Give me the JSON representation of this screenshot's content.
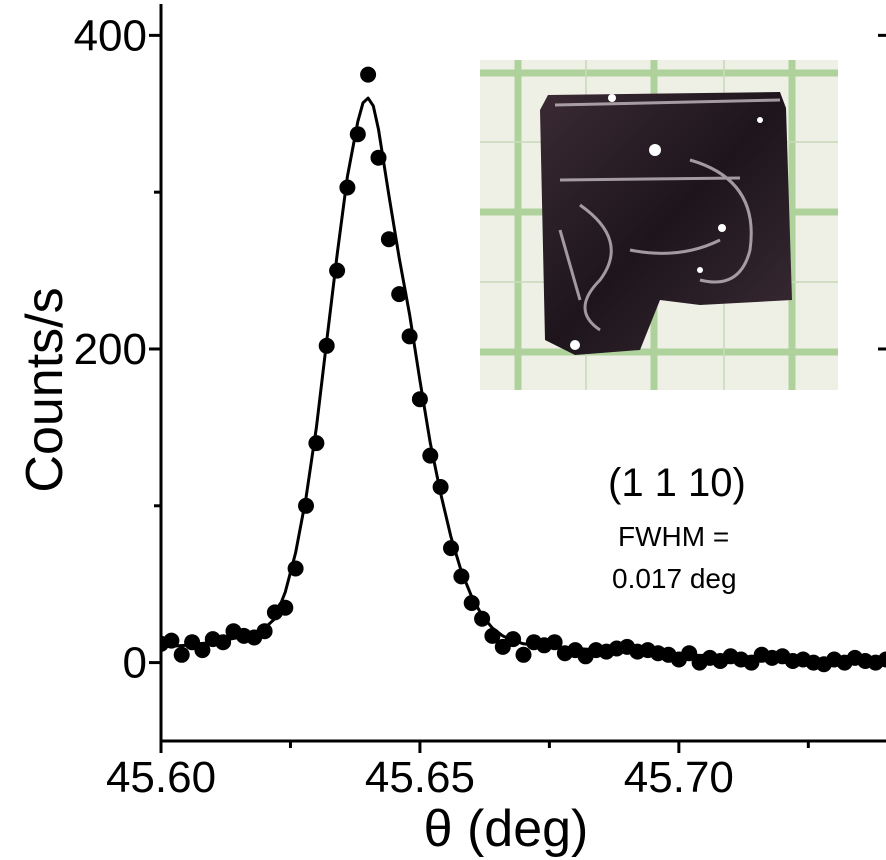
{
  "chart_data": {
    "type": "scatter",
    "xlabel": "θ (deg)",
    "ylabel": "Counts/s",
    "xlim": [
      45.6,
      45.74
    ],
    "ylim": [
      -50,
      420
    ],
    "x_ticks": [
      45.6,
      45.65,
      45.7
    ],
    "x_tick_labels": [
      "45.60",
      "45.65",
      "45.70"
    ],
    "y_ticks": [
      0,
      200,
      400
    ],
    "y_tick_labels": [
      "0",
      "200",
      "400"
    ],
    "grid": false,
    "annotations": {
      "reflection": "(1 1 10)",
      "fwhm_line1": "FWHM =",
      "fwhm_line2": "0.017 deg"
    },
    "inset": {
      "kind": "photo",
      "subject": "crystal on millimetre grid paper"
    },
    "series": [
      {
        "kind": "points",
        "color": "#000000",
        "x": [
          45.6,
          45.602,
          45.604,
          45.606,
          45.608,
          45.61,
          45.612,
          45.614,
          45.616,
          45.618,
          45.62,
          45.622,
          45.624,
          45.626,
          45.628,
          45.63,
          45.632,
          45.634,
          45.636,
          45.638,
          45.64,
          45.642,
          45.644,
          45.646,
          45.648,
          45.65,
          45.652,
          45.654,
          45.656,
          45.658,
          45.66,
          45.662,
          45.664,
          45.666,
          45.668,
          45.67,
          45.672,
          45.674,
          45.676,
          45.678,
          45.68,
          45.682,
          45.684,
          45.686,
          45.688,
          45.69,
          45.692,
          45.694,
          45.696,
          45.698,
          45.7,
          45.702,
          45.704,
          45.706,
          45.708,
          45.71,
          45.712,
          45.714,
          45.716,
          45.718,
          45.72,
          45.722,
          45.724,
          45.726,
          45.728,
          45.73,
          45.732,
          45.734,
          45.736,
          45.738,
          45.74
        ],
        "y": [
          12,
          14,
          5,
          13,
          8,
          15,
          13,
          20,
          17,
          16,
          20,
          32,
          35,
          60,
          100,
          140,
          202,
          250,
          303,
          337,
          375,
          322,
          270,
          235,
          208,
          168,
          132,
          112,
          73,
          55,
          38,
          28,
          17,
          10,
          15,
          5,
          13,
          11,
          13,
          6,
          8,
          4,
          8,
          7,
          9,
          10,
          7,
          8,
          6,
          5,
          2,
          6,
          0,
          3,
          1,
          4,
          2,
          0,
          5,
          3,
          4,
          1,
          2,
          0,
          -1,
          2,
          0,
          3,
          1,
          0,
          2
        ]
      },
      {
        "kind": "fit-line",
        "color": "#000000",
        "x": [
          45.6,
          45.605,
          45.61,
          45.615,
          45.618,
          45.62,
          45.622,
          45.624,
          45.626,
          45.628,
          45.63,
          45.632,
          45.634,
          45.636,
          45.638,
          45.639,
          45.64,
          45.641,
          45.642,
          45.644,
          45.646,
          45.648,
          45.65,
          45.652,
          45.654,
          45.656,
          45.658,
          45.66,
          45.662,
          45.664,
          45.666,
          45.668,
          45.67,
          45.675,
          45.68,
          45.69,
          45.7,
          45.71,
          45.72,
          45.73,
          45.74
        ],
        "y": [
          10,
          11,
          13,
          16,
          19,
          22,
          28,
          45,
          70,
          105,
          150,
          205,
          260,
          310,
          345,
          357,
          360,
          355,
          340,
          298,
          258,
          222,
          180,
          140,
          108,
          80,
          58,
          42,
          30,
          22,
          17,
          14,
          12,
          10,
          9,
          7,
          5,
          4,
          3,
          2,
          2
        ]
      }
    ]
  }
}
